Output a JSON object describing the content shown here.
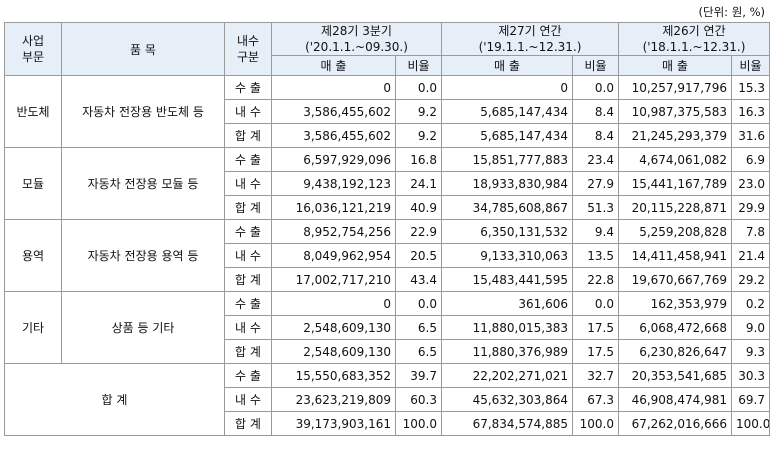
{
  "unit_note": "(단위: 원, %)",
  "header": {
    "segment": "사업\n부문",
    "segment_l1": "사업",
    "segment_l2": "부문",
    "item": "품 목",
    "type_l1": "내수",
    "type_l2": "구분",
    "periods": [
      {
        "title": "제28기 3분기",
        "range": "('20.1.1.~09.30.)"
      },
      {
        "title": "제27기 연간",
        "range": "('19.1.1.~12.31.)"
      },
      {
        "title": "제26기 연간",
        "range": "('18.1.1.~12.31.)"
      }
    ],
    "sales": "매 출",
    "ratio": "비율"
  },
  "groups": [
    {
      "segment": "반도체",
      "item": "자동차 전장용 반도체 등",
      "rows": [
        {
          "type": "수 출",
          "v": [
            "0",
            "0.0",
            "0",
            "0.0",
            "10,257,917,796",
            "15.3"
          ]
        },
        {
          "type": "내 수",
          "v": [
            "3,586,455,602",
            "9.2",
            "5,685,147,434",
            "8.4",
            "10,987,375,583",
            "16.3"
          ]
        },
        {
          "type": "합 계",
          "v": [
            "3,586,455,602",
            "9.2",
            "5,685,147,434",
            "8.4",
            "21,245,293,379",
            "31.6"
          ]
        }
      ]
    },
    {
      "segment": "모듈",
      "item": "자동차 전장용 모듈 등",
      "rows": [
        {
          "type": "수 출",
          "v": [
            "6,597,929,096",
            "16.8",
            "15,851,777,883",
            "23.4",
            "4,674,061,082",
            "6.9"
          ]
        },
        {
          "type": "내 수",
          "v": [
            "9,438,192,123",
            "24.1",
            "18,933,830,984",
            "27.9",
            "15,441,167,789",
            "23.0"
          ]
        },
        {
          "type": "합 계",
          "v": [
            "16,036,121,219",
            "40.9",
            "34,785,608,867",
            "51.3",
            "20,115,228,871",
            "29.9"
          ]
        }
      ]
    },
    {
      "segment": "용역",
      "item": "자동차 전장용 용역 등",
      "rows": [
        {
          "type": "수 출",
          "v": [
            "8,952,754,256",
            "22.9",
            "6,350,131,532",
            "9.4",
            "5,259,208,828",
            "7.8"
          ]
        },
        {
          "type": "내 수",
          "v": [
            "8,049,962,954",
            "20.5",
            "9,133,310,063",
            "13.5",
            "14,411,458,941",
            "21.4"
          ]
        },
        {
          "type": "합 계",
          "v": [
            "17,002,717,210",
            "43.4",
            "15,483,441,595",
            "22.8",
            "19,670,667,769",
            "29.2"
          ]
        }
      ]
    },
    {
      "segment": "기타",
      "item": "상품 등 기타",
      "rows": [
        {
          "type": "수 출",
          "v": [
            "0",
            "0.0",
            "361,606",
            "0.0",
            "162,353,979",
            "0.2"
          ]
        },
        {
          "type": "내 수",
          "v": [
            "2,548,609,130",
            "6.5",
            "11,880,015,383",
            "17.5",
            "6,068,472,668",
            "9.0"
          ]
        },
        {
          "type": "합 계",
          "v": [
            "2,548,609,130",
            "6.5",
            "11,880,376,989",
            "17.5",
            "6,230,826,647",
            "9.3"
          ]
        }
      ]
    }
  ],
  "total": {
    "label": "합 계",
    "rows": [
      {
        "type": "수 출",
        "v": [
          "15,550,683,352",
          "39.7",
          "22,202,271,021",
          "32.7",
          "20,353,541,685",
          "30.3"
        ]
      },
      {
        "type": "내 수",
        "v": [
          "23,623,219,809",
          "60.3",
          "45,632,303,864",
          "67.3",
          "46,908,474,981",
          "69.7"
        ]
      },
      {
        "type": "합 계",
        "v": [
          "39,173,903,161",
          "100.0",
          "67,834,574,885",
          "100.0",
          "67,262,016,666",
          "100.0"
        ]
      }
    ]
  }
}
